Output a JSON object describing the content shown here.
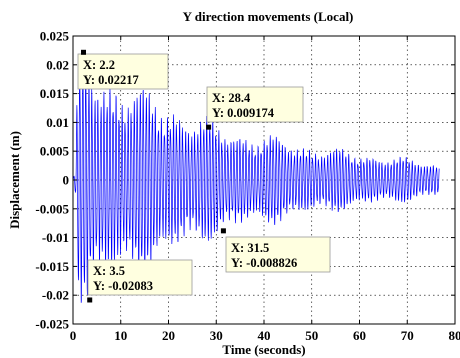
{
  "chart_data": {
    "type": "line",
    "title": "Y direction movements (Local)",
    "xlabel": "Time (seconds)",
    "ylabel": "Displacement (m)",
    "xlim": [
      0,
      80
    ],
    "ylim": [
      -0.025,
      0.025
    ],
    "xticks": [
      "0",
      "10",
      "20",
      "30",
      "40",
      "50",
      "60",
      "70",
      "80"
    ],
    "yticks": [
      "-0.025",
      "-0.02",
      "-0.015",
      "-0.01",
      "-0.005",
      "0",
      "0.005",
      "0.01",
      "0.015",
      "0.02",
      "0.025"
    ],
    "grid": true,
    "line_color": "#0000ff",
    "series": [
      {
        "time_end": 76.7,
        "envelope": [
          {
            "t": 0.5,
            "a": 0.002
          },
          {
            "t": 1.0,
            "a": 0.018
          },
          {
            "t": 2.2,
            "a": 0.0215
          },
          {
            "t": 5.0,
            "a": 0.0195
          },
          {
            "t": 10.0,
            "a": 0.017
          },
          {
            "t": 15.0,
            "a": 0.015
          },
          {
            "t": 20.0,
            "a": 0.0135
          },
          {
            "t": 25.0,
            "a": 0.0112
          },
          {
            "t": 30.0,
            "a": 0.0095
          },
          {
            "t": 35.0,
            "a": 0.0085
          },
          {
            "t": 40.0,
            "a": 0.0075
          },
          {
            "t": 45.0,
            "a": 0.0068
          },
          {
            "t": 50.0,
            "a": 0.006
          },
          {
            "t": 55.0,
            "a": 0.0052
          },
          {
            "t": 60.0,
            "a": 0.0046
          },
          {
            "t": 65.0,
            "a": 0.0042
          },
          {
            "t": 70.0,
            "a": 0.0036
          },
          {
            "t": 76.7,
            "a": 0.0028
          }
        ]
      }
    ],
    "datatips": [
      {
        "x": 2.2,
        "y": 0.02217,
        "label_x": "X: 2.2",
        "label_y": "Y: 0.02217"
      },
      {
        "x": 28.4,
        "y": 0.009174,
        "label_x": "X: 28.4",
        "label_y": "Y: 0.009174"
      },
      {
        "x": 31.5,
        "y": -0.008826,
        "label_x": "X: 31.5",
        "label_y": "Y: -0.008826"
      },
      {
        "x": 3.5,
        "y": -0.02083,
        "label_x": "X: 3.5",
        "label_y": "Y: -0.02083"
      }
    ]
  }
}
